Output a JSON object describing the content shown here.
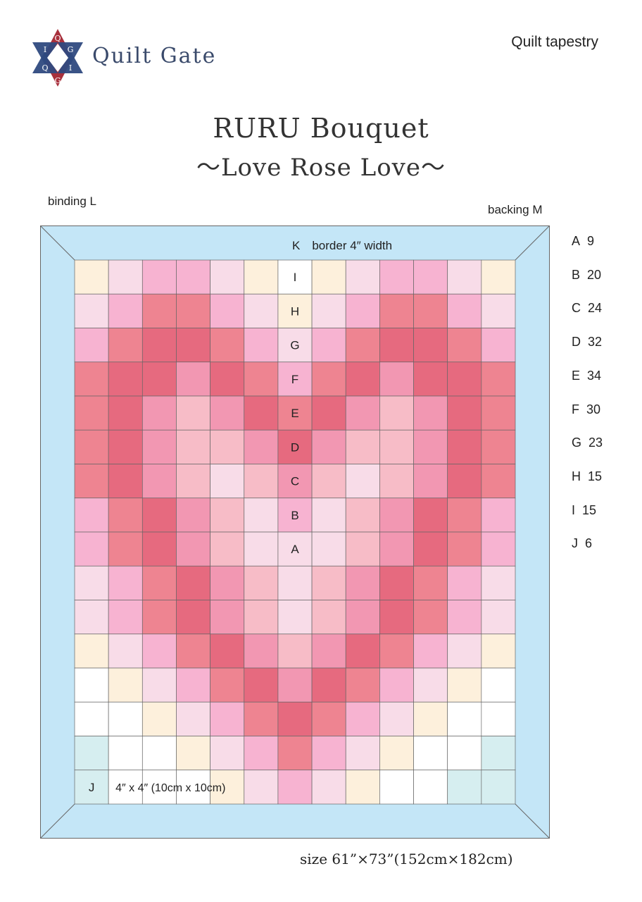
{
  "header": {
    "brand": "Quilt Gate",
    "doc_type": "Quilt tapestry",
    "logo_letters": [
      "Q",
      "I",
      "G",
      "Q",
      "I",
      "G"
    ]
  },
  "title": "RURU Bouquet",
  "subtitle": "～Love Rose Love～",
  "labels": {
    "binding": "binding L",
    "backing": "backing M",
    "border": "K　border 4″ width",
    "block_size": "4″ x 4″ (10cm x 10cm)",
    "size": "size 61”×73”(152cm×182cm)"
  },
  "colors": {
    "A": "#f8dce8",
    "B": "#f7b3d1",
    "C": "#ee8491",
    "D": "#e66a7f",
    "E": "#f297b2",
    "F": "#f7bcc7",
    "G": "#fdf0dc",
    "H": "#ffffff",
    "I": "#d6eef0",
    "border": "#c4e6f7",
    "line": "#666666"
  },
  "legend": [
    {
      "letter": "A",
      "count": "9"
    },
    {
      "letter": "B",
      "count": "20"
    },
    {
      "letter": "C",
      "count": "24"
    },
    {
      "letter": "D",
      "count": "32"
    },
    {
      "letter": "E",
      "count": "34"
    },
    {
      "letter": "F",
      "count": "30"
    },
    {
      "letter": "G",
      "count": "23"
    },
    {
      "letter": "H",
      "count": "15"
    },
    {
      "letter": "I",
      "count": "15"
    },
    {
      "letter": "J",
      "count": "6"
    }
  ],
  "column_labels": [
    "I",
    "H",
    "G",
    "F",
    "E",
    "D",
    "C",
    "B",
    "A"
  ],
  "grid_corner_label": "J",
  "grid": [
    [
      "G",
      "A",
      "B",
      "B",
      "A",
      "G",
      "H",
      "G",
      "A",
      "B",
      "B",
      "A",
      "G"
    ],
    [
      "A",
      "B",
      "C",
      "C",
      "B",
      "A",
      "G",
      "A",
      "B",
      "C",
      "C",
      "B",
      "A"
    ],
    [
      "B",
      "C",
      "D",
      "D",
      "C",
      "B",
      "A",
      "B",
      "C",
      "D",
      "D",
      "C",
      "B"
    ],
    [
      "C",
      "D",
      "D",
      "E",
      "D",
      "C",
      "B",
      "C",
      "D",
      "E",
      "D",
      "D",
      "C"
    ],
    [
      "C",
      "D",
      "E",
      "F",
      "E",
      "D",
      "C",
      "D",
      "E",
      "F",
      "E",
      "D",
      "C"
    ],
    [
      "C",
      "D",
      "E",
      "F",
      "F",
      "E",
      "D",
      "E",
      "F",
      "F",
      "E",
      "D",
      "C"
    ],
    [
      "C",
      "D",
      "E",
      "F",
      "A",
      "F",
      "E",
      "F",
      "A",
      "F",
      "E",
      "D",
      "C"
    ],
    [
      "B",
      "C",
      "D",
      "E",
      "F",
      "A",
      "B",
      "A",
      "F",
      "E",
      "D",
      "C",
      "B"
    ],
    [
      "B",
      "C",
      "D",
      "E",
      "F",
      "A",
      "A",
      "A",
      "F",
      "E",
      "D",
      "C",
      "B"
    ],
    [
      "A",
      "B",
      "C",
      "D",
      "E",
      "F",
      "A",
      "F",
      "E",
      "D",
      "C",
      "B",
      "A"
    ],
    [
      "A",
      "B",
      "C",
      "D",
      "E",
      "F",
      "A",
      "F",
      "E",
      "D",
      "C",
      "B",
      "A"
    ],
    [
      "G",
      "A",
      "B",
      "C",
      "D",
      "E",
      "F",
      "E",
      "D",
      "C",
      "B",
      "A",
      "G"
    ],
    [
      "H",
      "G",
      "A",
      "B",
      "C",
      "D",
      "E",
      "D",
      "C",
      "B",
      "A",
      "G",
      "H"
    ],
    [
      "H",
      "H",
      "G",
      "A",
      "B",
      "C",
      "D",
      "C",
      "B",
      "A",
      "G",
      "H",
      "H"
    ],
    [
      "I",
      "H",
      "H",
      "G",
      "A",
      "B",
      "C",
      "B",
      "A",
      "G",
      "H",
      "H",
      "I"
    ],
    [
      "I",
      "H",
      "H",
      "H",
      "G",
      "A",
      "B",
      "A",
      "G",
      "H",
      "H",
      "I",
      "I"
    ]
  ]
}
